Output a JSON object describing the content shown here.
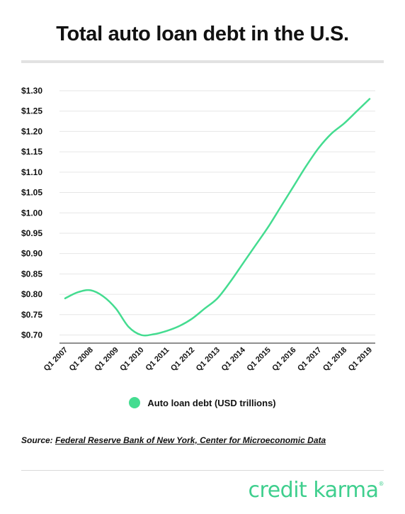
{
  "title": "Total auto loan debt in the U.S.",
  "legend": {
    "label": "Auto loan debt (USD trillions)"
  },
  "source": {
    "prefix": "Source:",
    "link_text": "Federal Reserve Bank of New York, Center for Microeconomic Data"
  },
  "logo": {
    "text": "credit karma",
    "mark": "®"
  },
  "colors": {
    "series": "#44dc90",
    "grid": "#e6e6e6",
    "axis": "#222222",
    "logo": "#3fcf8e"
  },
  "chart_data": {
    "type": "line",
    "title": "Total auto loan debt in the U.S.",
    "xlabel": "",
    "ylabel": "",
    "categories": [
      "Q1 2007",
      "Q1 2008",
      "Q1 2009",
      "Q1 2010",
      "Q1 2011",
      "Q1 2012",
      "Q1 2013",
      "Q1 2014",
      "Q1 2015",
      "Q1 2016",
      "Q1 2017",
      "Q1 2018",
      "Q1 2019"
    ],
    "y_ticks": [
      "$0.70",
      "$0.75",
      "$0.80",
      "$0.85",
      "$0.90",
      "$0.95",
      "$1.00",
      "$1.05",
      "$1.10",
      "$1.15",
      "$1.20",
      "$1.25",
      "$1.30"
    ],
    "ylim": [
      0.68,
      1.3
    ],
    "grid": true,
    "legend_position": "bottom",
    "series": [
      {
        "name": "Auto loan debt (USD trillions)",
        "x": [
          "Q1 2007",
          "Q3 2007",
          "Q1 2008",
          "Q3 2008",
          "Q1 2009",
          "Q3 2009",
          "Q1 2010",
          "Q3 2010",
          "Q1 2011",
          "Q3 2011",
          "Q1 2012",
          "Q3 2012",
          "Q1 2013",
          "Q3 2013",
          "Q1 2014",
          "Q3 2014",
          "Q1 2015",
          "Q3 2015",
          "Q1 2016",
          "Q3 2016",
          "Q1 2017",
          "Q3 2017",
          "Q1 2018",
          "Q3 2018",
          "Q1 2019"
        ],
        "values": [
          0.79,
          0.805,
          0.81,
          0.795,
          0.765,
          0.72,
          0.7,
          0.702,
          0.71,
          0.722,
          0.74,
          0.765,
          0.79,
          0.83,
          0.875,
          0.92,
          0.965,
          1.015,
          1.065,
          1.115,
          1.16,
          1.195,
          1.22,
          1.25,
          1.28
        ]
      }
    ]
  }
}
